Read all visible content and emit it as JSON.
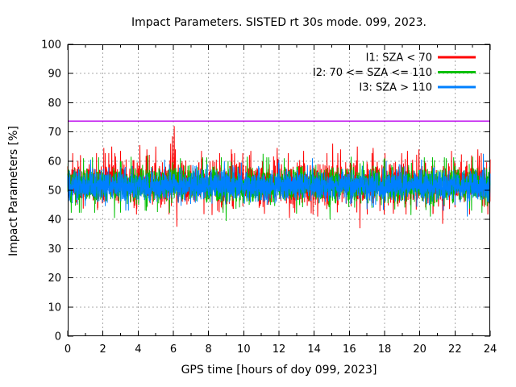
{
  "title": "Impact Parameters. SISTED rt 30s mode. 099, 2023.",
  "chart_data": {
    "type": "line",
    "title": "Impact Parameters. SISTED rt 30s mode. 099, 2023.",
    "xlabel": "GPS time [hours of doy 099, 2023]",
    "ylabel": "Impact Parameters [%]",
    "xlim": [
      0,
      24
    ],
    "ylim": [
      0,
      100
    ],
    "x_major_step": 2,
    "x_minor_step": 1,
    "y_major_step": 10,
    "x_tick_labels": [
      "0",
      "2",
      "4",
      "6",
      "8",
      "10",
      "12",
      "14",
      "16",
      "18",
      "20",
      "22",
      "24"
    ],
    "y_tick_labels": [
      "0",
      "10",
      "20",
      "30",
      "40",
      "50",
      "60",
      "70",
      "80",
      "90",
      "100"
    ],
    "grid": true,
    "grid_color": "#a8a8a8",
    "legend_position": "top-right-inside",
    "sample_interval_hours": 0.008333333,
    "representation": "dense 30-second noisy time series spanning 0-24 h; band values synthesized from the statistics below",
    "threshold_line": {
      "y": 73.7,
      "color": "#bb00ee"
    },
    "series": [
      {
        "id": "I1",
        "label": "I1: SZA < 70",
        "color": "#ff0000",
        "mean": 52.2,
        "sigma": 3.3,
        "clamp": 10.5,
        "tail_prob": 0.045,
        "tail_scale": 1.9,
        "seed": 1017,
        "spikes": [
          {
            "x": 2.05,
            "y": 64.5
          },
          {
            "x": 2.5,
            "y": 65
          },
          {
            "x": 3.0,
            "y": 63.5
          },
          {
            "x": 4.1,
            "y": 65.5
          },
          {
            "x": 4.5,
            "y": 64
          },
          {
            "x": 5.0,
            "y": 65
          },
          {
            "x": 5.85,
            "y": 66
          },
          {
            "x": 5.95,
            "y": 68.5
          },
          {
            "x": 6.05,
            "y": 72
          },
          {
            "x": 6.12,
            "y": 64
          },
          {
            "x": 6.2,
            "y": 37.5
          },
          {
            "x": 7.6,
            "y": 63.5
          },
          {
            "x": 8.2,
            "y": 41.5
          },
          {
            "x": 9.3,
            "y": 64
          },
          {
            "x": 10.4,
            "y": 63.5
          },
          {
            "x": 11.9,
            "y": 64.5
          },
          {
            "x": 12.6,
            "y": 40.5
          },
          {
            "x": 13.4,
            "y": 63.5
          },
          {
            "x": 14.2,
            "y": 41
          },
          {
            "x": 15.05,
            "y": 66
          },
          {
            "x": 15.5,
            "y": 64
          },
          {
            "x": 16.45,
            "y": 65
          },
          {
            "x": 16.6,
            "y": 37
          },
          {
            "x": 17.35,
            "y": 64.5
          },
          {
            "x": 18.5,
            "y": 42
          },
          {
            "x": 19.3,
            "y": 63.5
          },
          {
            "x": 19.95,
            "y": 64
          },
          {
            "x": 21.3,
            "y": 38.5
          },
          {
            "x": 21.8,
            "y": 63.5
          },
          {
            "x": 23.3,
            "y": 64
          }
        ]
      },
      {
        "id": "I2",
        "label": "I2: 70 <= SZA <= 110",
        "color": "#00c000",
        "mean": 51.8,
        "sigma": 2.9,
        "clamp": 9.5,
        "tail_prob": 0.035,
        "tail_scale": 1.8,
        "seed": 2029,
        "spikes": [
          {
            "x": 0.9,
            "y": 61
          },
          {
            "x": 2.66,
            "y": 40.5
          },
          {
            "x": 3.6,
            "y": 61.5
          },
          {
            "x": 4.55,
            "y": 62
          },
          {
            "x": 6.4,
            "y": 61
          },
          {
            "x": 9.0,
            "y": 39.5
          },
          {
            "x": 10.2,
            "y": 61.5
          },
          {
            "x": 11.1,
            "y": 62.5
          },
          {
            "x": 12.3,
            "y": 61
          },
          {
            "x": 13.0,
            "y": 42
          },
          {
            "x": 14.9,
            "y": 40
          },
          {
            "x": 16.1,
            "y": 61.5
          },
          {
            "x": 18.0,
            "y": 61
          },
          {
            "x": 19.5,
            "y": 41.5
          },
          {
            "x": 20.6,
            "y": 41
          },
          {
            "x": 21.5,
            "y": 61
          },
          {
            "x": 23.0,
            "y": 61.5
          }
        ]
      },
      {
        "id": "I3",
        "label": "I3: SZA > 110",
        "color": "#0080ff",
        "mean": 51.5,
        "sigma": 2.45,
        "clamp": 8.5,
        "tail_prob": 0.03,
        "tail_scale": 1.7,
        "seed": 3041,
        "spikes": [
          {
            "x": 1.3,
            "y": 60.5
          },
          {
            "x": 3.3,
            "y": 43
          },
          {
            "x": 5.5,
            "y": 60.5
          },
          {
            "x": 8.9,
            "y": 60
          },
          {
            "x": 12.0,
            "y": 60.5
          },
          {
            "x": 13.9,
            "y": 61
          },
          {
            "x": 17.0,
            "y": 43.5
          },
          {
            "x": 20.1,
            "y": 60.5
          },
          {
            "x": 22.7,
            "y": 41
          },
          {
            "x": 23.62,
            "y": 62.5
          }
        ]
      }
    ]
  },
  "colors": {
    "background": "#ffffff",
    "border": "#000000",
    "grid": "#a8a8a8",
    "text": "#000000",
    "series_1": "#ff0000",
    "series_2": "#00c000",
    "series_3": "#0080ff",
    "threshold": "#bb00ee"
  }
}
